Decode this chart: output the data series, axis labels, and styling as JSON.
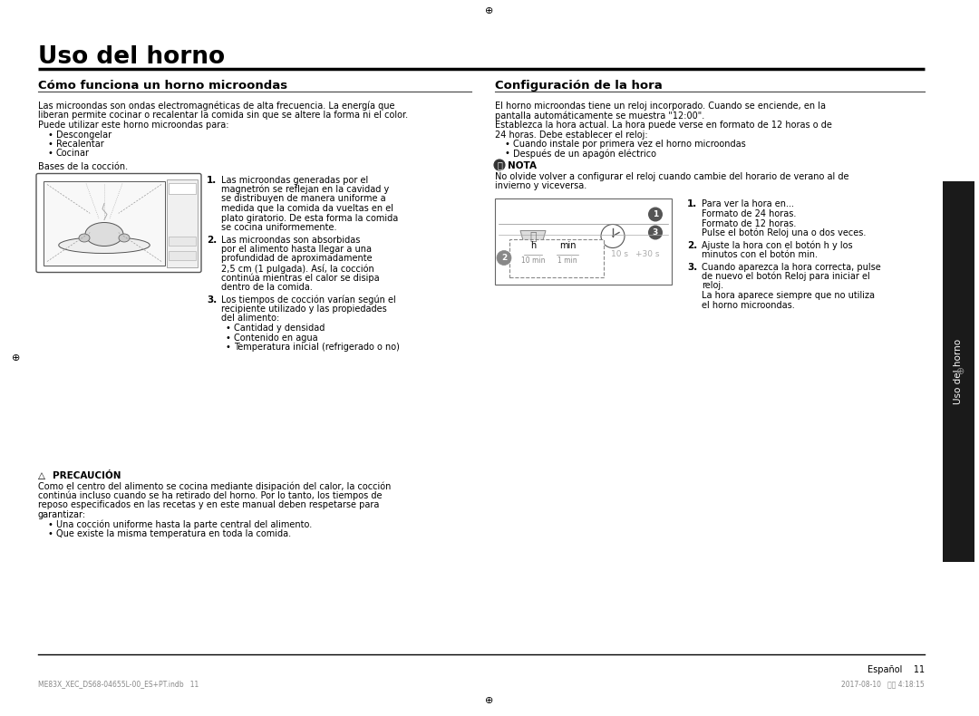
{
  "bg_color": "#ffffff",
  "page_title": "Uso del horno",
  "left_section_title": "Cómo funciona un horno microondas",
  "right_section_title": "Configuración de la hora",
  "left_intro_lines": [
    "Las microondas son ondas electromagnéticas de alta frecuencia. La energía que",
    "liberan permite cocinar o recalentar la comida sin que se altere la forma ni el color.",
    "Puede utilizar este horno microondas para:"
  ],
  "left_bullets": [
    "Descongelar",
    "Recalentar",
    "Cocinar"
  ],
  "bases_text": "Bases de la cocción.",
  "right_intro_lines": [
    "El horno microondas tiene un reloj incorporado. Cuando se enciende, en la",
    "pantalla automáticamente se muestra \"12:00\".",
    "Establezca la hora actual. La hora puede verse en formato de 12 horas o de",
    "24 horas. Debe establecer el reloj:"
  ],
  "right_bullets": [
    "Cuando instale por primera vez el horno microondas",
    "Después de un apagón eléctrico"
  ],
  "nota_title": "NOTA",
  "nota_lines": [
    "No olvide volver a configurar el reloj cuando cambie del horario de verano al de",
    "invierno y viceversa."
  ],
  "step1_lines": [
    "Las microondas generadas por el",
    "magnetrón se reflejan en la cavidad y",
    "se distribuyen de manera uniforme a",
    "medida que la comida da vueltas en el",
    "plato giratorio. De esta forma la comida",
    "se cocina uniformemente."
  ],
  "step2_lines": [
    "Las microondas son absorbidas",
    "por el alimento hasta llegar a una",
    "profundidad de aproximadamente",
    "2,5 cm (1 pulgada). Así, la cocción",
    "continúa mientras el calor se disipa",
    "dentro de la comida."
  ],
  "step3_lines": [
    "Los tiempos de cocción varían según el",
    "recipiente utilizado y las propiedades",
    "del alimento:"
  ],
  "step3_bullets": [
    "Cantidad y densidad",
    "Contenido en agua",
    "Temperatura inicial (refrigerado o no)"
  ],
  "precaucion_title": "PRECAUCIÓN",
  "precaucion_lines": [
    "Como el centro del alimento se cocina mediante disipación del calor, la cocción",
    "continúa incluso cuando se ha retirado del horno. Por lo tanto, los tiempos de",
    "reposo especificados en las recetas y en este manual deben respetarse para",
    "garantizar:"
  ],
  "precaucion_bullets": [
    "Una cocción uniforme hasta la parte central del alimento.",
    "Que existe la misma temperatura en toda la comida."
  ],
  "right_step1_lines": [
    "Para ver la hora en...",
    "Formato de 24 horas.",
    "Formato de 12 horas.",
    "Pulse el botón Reloj una o dos veces."
  ],
  "right_step1_bold": [
    false,
    false,
    false,
    "Reloj"
  ],
  "right_step2_lines": [
    "Ajuste la hora con el botón h y los",
    "minutos con el botón min."
  ],
  "right_step3_lines": [
    "Cuando aparezca la hora correcta, pulse",
    "de nuevo el botón Reloj para iniciar el",
    "reloj.",
    "La hora aparece siempre que no utiliza",
    "el horno microondas."
  ],
  "footer_text": "Español    11",
  "footer_file": "ME83X_XEC_DS68-04655L-00_ES+PT.indb   11",
  "footer_date": "2017-08-10   오전 4:18:15",
  "sidebar_text": "Uso del horno"
}
